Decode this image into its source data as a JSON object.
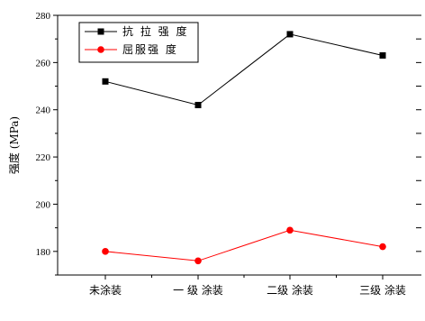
{
  "chart_data": {
    "type": "line",
    "categories": [
      "未涂装",
      "一 级 涂装",
      "二级 涂装",
      "三级 涂装"
    ],
    "series": [
      {
        "name": "抗 拉 强 度",
        "values": [
          252,
          242,
          272,
          263
        ],
        "color": "#000000",
        "marker": "square"
      },
      {
        "name": "屈服强 度",
        "values": [
          180,
          176,
          189,
          182
        ],
        "color": "#ff0000",
        "marker": "circle"
      }
    ],
    "ylabel": "强度 (MPa)",
    "ylim": [
      170,
      280
    ],
    "yticks": [
      180,
      200,
      220,
      240,
      260,
      280
    ],
    "legend_position": "top-left",
    "grid": false
  }
}
